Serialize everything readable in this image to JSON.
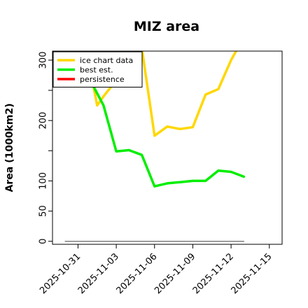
{
  "chart_data": {
    "type": "line",
    "title": "MIZ area",
    "xlabel": "",
    "ylabel": "Area (1000km2)",
    "x_unit": "date",
    "xlim": [
      "2025-10-29",
      "2025-11-16"
    ],
    "ylim": [
      -5,
      315
    ],
    "x_ticks": [
      "2025-10-31",
      "2025-11-03",
      "2025-11-06",
      "2025-11-09",
      "2025-11-12",
      "2025-11-15"
    ],
    "y_ticks": [
      0,
      50,
      100,
      150,
      200,
      250,
      300
    ],
    "y_tick_labels": [
      "0",
      "50",
      "100",
      "",
      "200",
      "",
      "300"
    ],
    "grid": false,
    "legend_position": "top-left",
    "series": [
      {
        "name": "ice chart data",
        "color": "#FFD700",
        "x": [
          "2025-11-01",
          "2025-11-01 12:00",
          "2025-11-02",
          "2025-11-05",
          "2025-11-06",
          "2025-11-07",
          "2025-11-08",
          "2025-11-09",
          "2025-11-10",
          "2025-11-11",
          "2025-11-12",
          "2025-11-13"
        ],
        "y": [
          280,
          225,
          240,
          320,
          175,
          190,
          186,
          189,
          243,
          252,
          300,
          338
        ]
      },
      {
        "name": "best est.",
        "color": "#00EE00",
        "x": [
          "2025-11-01",
          "2025-11-02",
          "2025-11-03",
          "2025-11-04",
          "2025-11-05",
          "2025-11-06",
          "2025-11-07",
          "2025-11-08",
          "2025-11-09",
          "2025-11-10",
          "2025-11-11",
          "2025-11-12",
          "2025-11-13"
        ],
        "y": [
          265,
          225,
          149,
          151,
          143,
          91,
          96,
          98,
          100,
          100,
          117,
          115,
          107
        ]
      },
      {
        "name": "persistence",
        "color": "#FF0000",
        "x": [],
        "y": []
      },
      {
        "name": "",
        "color": "#7f7f7f",
        "x": [
          "2025-10-30",
          "2025-11-13"
        ],
        "y": [
          0,
          0
        ]
      }
    ]
  }
}
